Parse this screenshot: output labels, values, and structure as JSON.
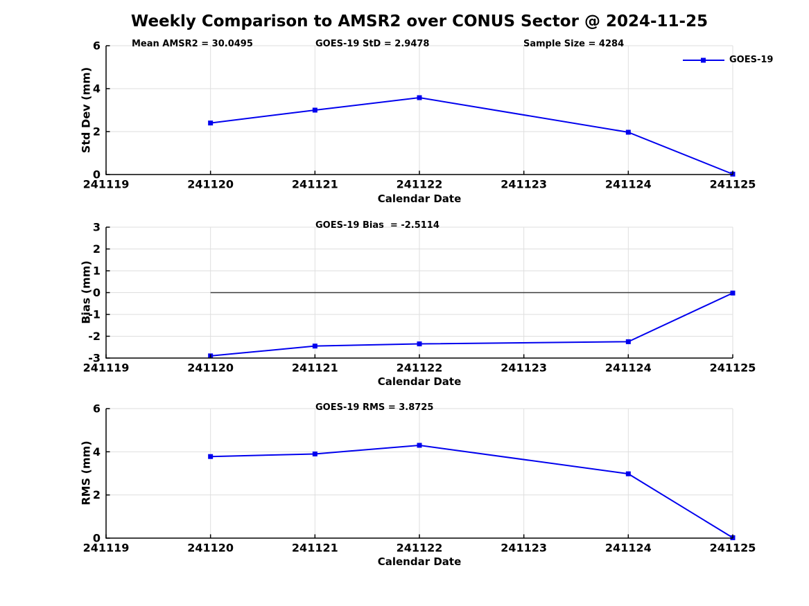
{
  "title": "Weekly Comparison to AMSR2 over CONUS Sector @ 2024-11-25",
  "style": {
    "line_color": "#0000EE",
    "grid_color": "#DEDEDE",
    "zero_line_color": "#3a3a3a",
    "spine_color": "#000000",
    "text_color": "#000000",
    "background": "#FFFFFF"
  },
  "chart_data": [
    {
      "type": "line",
      "ylabel": "Std Dev (mm)",
      "xlabel": "Calendar Date",
      "annotations": [
        {
          "text": "Mean AMSR2 = 30.0495"
        },
        {
          "text": "GOES-19 StD = 2.9478"
        },
        {
          "text": "Sample Size = 4284"
        }
      ],
      "x": [
        241120,
        241121,
        241122,
        241124,
        241125
      ],
      "series": [
        {
          "name": "GOES-19",
          "values": [
            2.4,
            3.0,
            3.58,
            1.97,
            0.02
          ]
        }
      ],
      "xlim": [
        241119,
        241125
      ],
      "ylim": [
        0,
        6
      ],
      "xticks": [
        "241119",
        "241120",
        "241121",
        "241122",
        "241123",
        "241124",
        "241125"
      ],
      "yticks": [
        "0",
        "2",
        "4",
        "6"
      ],
      "grid": true,
      "zero_line": false,
      "legend": {
        "label": "GOES-19",
        "position": "upper right"
      }
    },
    {
      "type": "line",
      "ylabel": "Bias (mm)",
      "xlabel": "Calendar Date",
      "annotations": [
        {
          "text": "GOES-19 Bias  = -2.5114"
        }
      ],
      "x": [
        241120,
        241121,
        241122,
        241124,
        241125
      ],
      "series": [
        {
          "name": "GOES-19",
          "values": [
            -2.9,
            -2.45,
            -2.35,
            -2.25,
            -0.02
          ]
        }
      ],
      "xlim": [
        241119,
        241125
      ],
      "ylim": [
        -3,
        3
      ],
      "xticks": [
        "241119",
        "241120",
        "241121",
        "241122",
        "241123",
        "241124",
        "241125"
      ],
      "yticks": [
        "-3",
        "-2",
        "-1",
        "0",
        "1",
        "2",
        "3"
      ],
      "grid": true,
      "zero_line": true
    },
    {
      "type": "line",
      "ylabel": "RMS (mm)",
      "xlabel": "Calendar Date",
      "annotations": [
        {
          "text": "GOES-19 RMS = 3.8725"
        }
      ],
      "x": [
        241120,
        241121,
        241122,
        241124,
        241125
      ],
      "series": [
        {
          "name": "GOES-19",
          "values": [
            3.78,
            3.9,
            4.3,
            2.98,
            0.02
          ]
        }
      ],
      "xlim": [
        241119,
        241125
      ],
      "ylim": [
        0,
        6
      ],
      "xticks": [
        "241119",
        "241120",
        "241121",
        "241122",
        "241123",
        "241124",
        "241125"
      ],
      "yticks": [
        "0",
        "2",
        "4",
        "6"
      ],
      "grid": true,
      "zero_line": false
    }
  ]
}
